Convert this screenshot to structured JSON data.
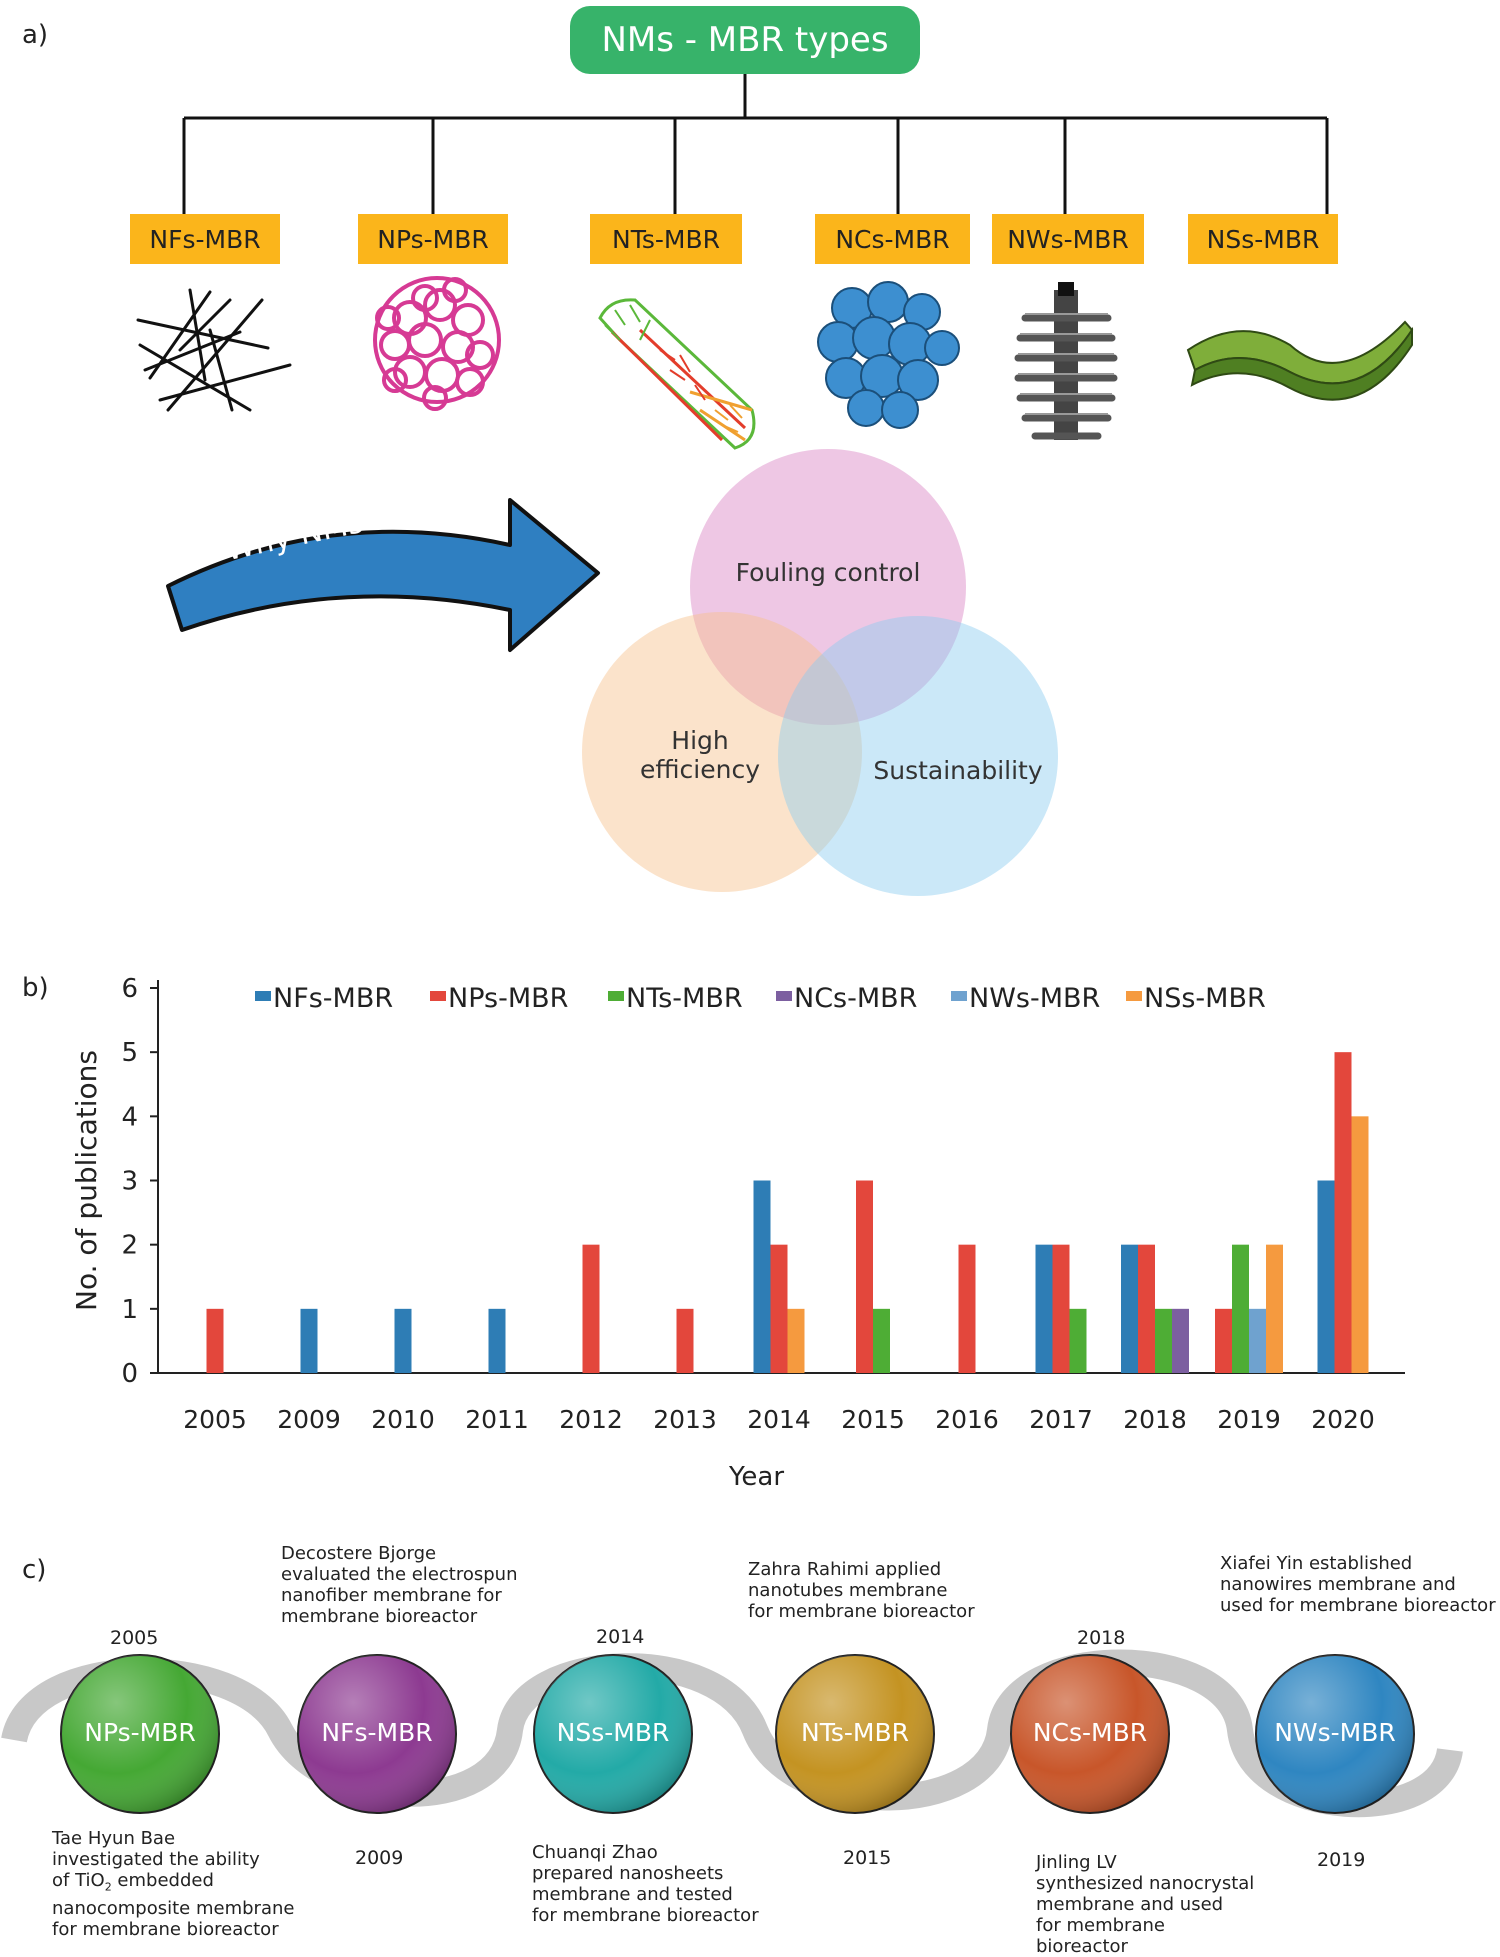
{
  "panel_a": {
    "label": "a)",
    "title": "NMs - MBR types",
    "types": [
      "NFs-MBR",
      "NPs-MBR",
      "NTs-MBR",
      "NCs-MBR",
      "NWs-MBR",
      "NSs-MBR"
    ],
    "arrow_text": "Why NMs-MBR ?",
    "venn": {
      "top": "Fouling control",
      "left_line1": "High",
      "left_line2": "efficiency",
      "right": "Sustainability"
    },
    "colors": {
      "title_pill": "#37b36a",
      "type_box": "#fbb51b",
      "arrow": "#2f7fc1",
      "venn_top": "#d983c4",
      "venn_left": "#f7c08b",
      "venn_right": "#8ccdf0"
    }
  },
  "panel_b": {
    "label": "b)"
  },
  "chart_data": {
    "type": "bar",
    "categories": [
      "2005",
      "2009",
      "2010",
      "2011",
      "2012",
      "2013",
      "2014",
      "2015",
      "2016",
      "2017",
      "2018",
      "2019",
      "2020"
    ],
    "series": [
      {
        "name": "NFs-MBR",
        "color": "#2e7db5",
        "values": [
          0,
          1,
          1,
          1,
          0,
          0,
          3,
          0,
          0,
          2,
          2,
          0,
          3
        ]
      },
      {
        "name": "NPs-MBR",
        "color": "#e3473c",
        "values": [
          1,
          0,
          0,
          0,
          2,
          1,
          2,
          3,
          2,
          2,
          2,
          1,
          5
        ]
      },
      {
        "name": "NTs-MBR",
        "color": "#4ead35",
        "values": [
          0,
          0,
          0,
          0,
          0,
          0,
          0,
          1,
          0,
          1,
          1,
          2,
          0
        ]
      },
      {
        "name": "NCs-MBR",
        "color": "#7c5fa0",
        "values": [
          0,
          0,
          0,
          0,
          0,
          0,
          0,
          0,
          0,
          0,
          1,
          0,
          0
        ]
      },
      {
        "name": "NWs-MBR",
        "color": "#6fa2cf",
        "values": [
          0,
          0,
          0,
          0,
          0,
          0,
          0,
          0,
          0,
          0,
          0,
          1,
          0
        ]
      },
      {
        "name": "NSs-MBR",
        "color": "#f59a3f",
        "values": [
          0,
          0,
          0,
          0,
          0,
          0,
          1,
          0,
          0,
          0,
          0,
          2,
          4
        ]
      }
    ],
    "yticks": [
      "0",
      "1",
      "2",
      "3",
      "4",
      "5",
      "6"
    ],
    "ylim": [
      0,
      6
    ],
    "xlabel": "Year",
    "ylabel": "No. of publications",
    "legend_position": "top"
  },
  "panel_c": {
    "label": "c)",
    "nodes": [
      {
        "name": "NPs-MBR",
        "color": "#45a834"
      },
      {
        "name": "NFs-MBR",
        "color": "#8d3a91"
      },
      {
        "name": "NSs-MBR",
        "color": "#23aaa7"
      },
      {
        "name": "NTs-MBR",
        "color": "#c49322"
      },
      {
        "name": "NCs-MBR",
        "color": "#c8562a"
      },
      {
        "name": "NWs-MBR",
        "color": "#2f86c1"
      }
    ],
    "years": [
      "2005",
      "2009",
      "2014",
      "2015",
      "2018",
      "2019"
    ],
    "descriptions": {
      "nps": [
        "Tae Hyun Bae",
        "investigated the ability",
        "of TiO",
        "2",
        " embedded",
        "nanocomposite membrane",
        "for membrane bioreactor"
      ],
      "nfs": [
        "Decostere Bjorge",
        "evaluated the electrospun",
        "nanofiber membrane for",
        "membrane bioreactor"
      ],
      "nss": [
        "Chuanqi Zhao",
        "prepared nanosheets",
        "membrane and tested",
        "for membrane bioreactor"
      ],
      "nts": [
        "Zahra Rahimi applied",
        "nanotubes membrane",
        "for membrane bioreactor"
      ],
      "ncs": [
        "Jinling LV",
        "synthesized nanocrystal",
        "membrane and used",
        "for membrane",
        "bioreactor"
      ],
      "nws": [
        "Xiafei Yin established",
        "nanowires membrane and",
        "used for membrane bioreactor"
      ]
    }
  }
}
